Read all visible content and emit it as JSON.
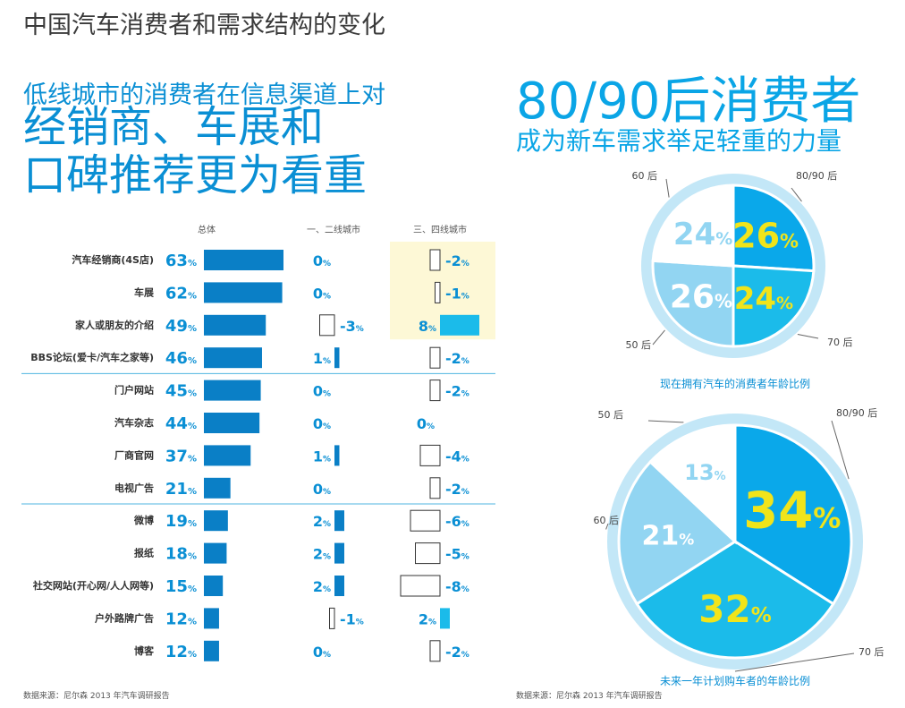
{
  "page": {
    "title": "中国汽车消费者和需求结构的变化"
  },
  "left": {
    "headline_line1": "低线城市的消费者在信息渠道上对",
    "headline_line2": "经销商、车展和",
    "headline_line3": "口碑推荐更为看重",
    "source": "数据来源：尼尔森 2013 年汽车调研报告"
  },
  "right": {
    "headline_main": "80/90后消费者",
    "headline_sub": "成为新车需求举足轻重的力量",
    "source": "数据来源：尼尔森 2013 年汽车调研报告"
  },
  "colors": {
    "dark_blue": "#0a7fc6",
    "bright_blue": "#1bbbea",
    "light_blue": "#92d5f2",
    "pale_blue": "#c3e7f7",
    "label_yellow": "#f1e41a",
    "highlight_bg": "#fdf8d6",
    "text_blue": "#0a8fd4"
  },
  "chart_data": [
    {
      "type": "bar",
      "categories": [
        "汽车经销商(4S店)",
        "车展",
        "家人或朋友的介绍",
        "BBS论坛(爱卡/汽车之家等)",
        "门户网站",
        "汽车杂志",
        "厂商官网",
        "电视广告",
        "微博",
        "报纸",
        "社交网站(开心网/人人网等)",
        "户外路牌广告",
        "博客"
      ],
      "series": [
        {
          "name": "总体",
          "values": [
            63,
            62,
            49,
            46,
            45,
            44,
            37,
            21,
            19,
            18,
            15,
            12,
            12
          ]
        },
        {
          "name": "一、二线城市",
          "values": [
            0,
            0,
            -3,
            1,
            0,
            0,
            1,
            0,
            2,
            2,
            2,
            -1,
            0
          ]
        },
        {
          "name": "三、四线城市",
          "values": [
            -2,
            -1,
            8,
            -2,
            -2,
            0,
            -4,
            -2,
            -6,
            -5,
            -8,
            2,
            -2
          ]
        }
      ],
      "unit": "%",
      "highlight_column": "三、四线城市",
      "highlight_rows": [
        "汽车经销商(4S店)",
        "车展",
        "家人或朋友的介绍"
      ],
      "group_dividers_after": [
        "BBS论坛(爱卡/汽车之家等)",
        "电视广告"
      ]
    },
    {
      "type": "pie",
      "caption": "现在拥有汽车的消费者年龄比例",
      "slices": [
        {
          "label": "80/90 后",
          "value": 26,
          "color": "#0aa8ea"
        },
        {
          "label": "70 后",
          "value": 24,
          "color": "#1bbbea"
        },
        {
          "label": "50 后",
          "value": 26,
          "color": "#92d5f2"
        },
        {
          "label": "60 后",
          "value": 24,
          "color": "#ffffff"
        }
      ]
    },
    {
      "type": "pie",
      "caption": "未来一年计划购车者的年龄比例",
      "slices": [
        {
          "label": "80/90 后",
          "value": 34,
          "color": "#0aa8ea"
        },
        {
          "label": "70 后",
          "value": 32,
          "color": "#1bbbea"
        },
        {
          "label": "60 后",
          "value": 21,
          "color": "#92d5f2"
        },
        {
          "label": "50 后",
          "value": 13,
          "color": "#ffffff"
        }
      ]
    }
  ]
}
